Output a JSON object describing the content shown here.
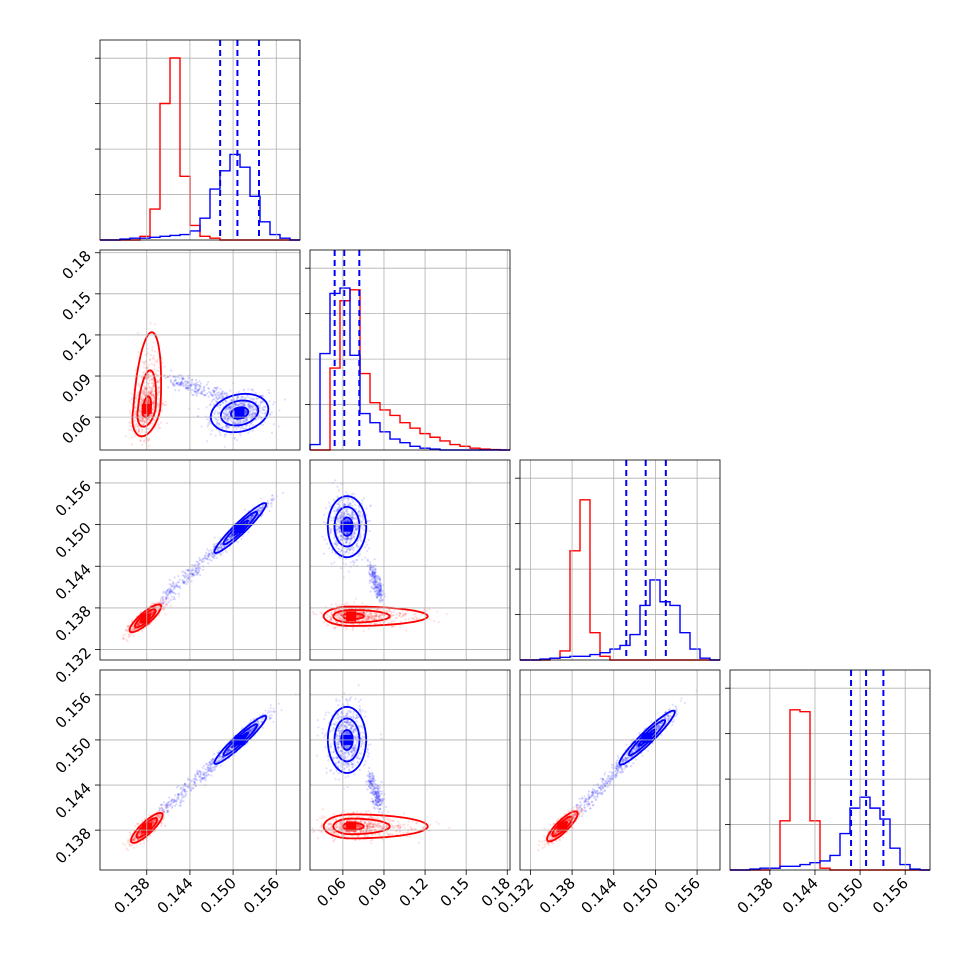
{
  "colors": {
    "red": "#ff0000",
    "blue": "#0000ff",
    "grid": "#b0b0b0",
    "axis": "#000000"
  },
  "chart_data": {
    "type": "corner",
    "grid": true,
    "series": [],
    "marginals": [
      {
        "range": [
          0.1315,
          0.1593
        ],
        "red_hist": [
          0,
          0,
          0,
          0,
          0.02,
          0.17,
          0.75,
          1.0,
          0.35,
          0.08,
          0.02,
          0.01,
          0,
          0,
          0,
          0,
          0,
          0,
          0,
          0
        ],
        "blue_hist": [
          0,
          0,
          0.005,
          0.01,
          0.01,
          0.015,
          0.02,
          0.025,
          0.03,
          0.05,
          0.12,
          0.28,
          0.38,
          0.47,
          0.4,
          0.24,
          0.1,
          0.03,
          0.01,
          0
        ],
        "blue_lines": [
          0.1482,
          0.1506,
          0.1536
        ],
        "ylim": [
          0,
          1.0
        ]
      },
      {
        "range": [
          0.036,
          0.182
        ],
        "red_hist": [
          0,
          0,
          0.45,
          0.82,
          0.88,
          0.42,
          0.26,
          0.22,
          0.19,
          0.15,
          0.12,
          0.09,
          0.07,
          0.05,
          0.03,
          0.02,
          0.01,
          0.005,
          0.002,
          0
        ],
        "blue_hist": [
          0.03,
          0.53,
          0.86,
          0.89,
          0.52,
          0.2,
          0.15,
          0.1,
          0.06,
          0.04,
          0.02,
          0.01,
          0.005,
          0,
          0,
          0,
          0,
          0,
          0,
          0
        ],
        "blue_lines": [
          0.054,
          0.061,
          0.072
        ],
        "ylim": [
          0,
          1.0
        ]
      },
      {
        "range": [
          0.1305,
          0.1593
        ],
        "red_hist": [
          0,
          0,
          0,
          0.01,
          0.05,
          0.6,
          0.88,
          0.15,
          0.02,
          0,
          0,
          0,
          0,
          0,
          0,
          0,
          0,
          0,
          0,
          0
        ],
        "blue_hist": [
          0,
          0,
          0.005,
          0.01,
          0.015,
          0.02,
          0.02,
          0.03,
          0.04,
          0.06,
          0.08,
          0.14,
          0.3,
          0.44,
          0.32,
          0.3,
          0.15,
          0.06,
          0.01,
          0
        ],
        "blue_lines": [
          0.1458,
          0.1486,
          0.1515
        ],
        "ylim": [
          0,
          1.0
        ]
      },
      {
        "range": [
          0.1327,
          0.1593
        ],
        "red_hist": [
          0,
          0,
          0,
          0,
          0.01,
          0.27,
          0.88,
          0.87,
          0.27,
          0.01,
          0,
          0,
          0,
          0,
          0,
          0,
          0,
          0,
          0,
          0
        ],
        "blue_hist": [
          0,
          0,
          0.005,
          0.01,
          0.01,
          0.02,
          0.02,
          0.03,
          0.04,
          0.05,
          0.08,
          0.2,
          0.34,
          0.4,
          0.34,
          0.28,
          0.12,
          0.03,
          0.005,
          0
        ],
        "blue_lines": [
          0.1488,
          0.1508,
          0.1531
        ],
        "ylim": [
          0,
          1.0
        ]
      }
    ],
    "panels": [
      {
        "row": 1,
        "col": 0,
        "xrange": [
          0.1315,
          0.1593
        ],
        "yrange": [
          0.036,
          0.182
        ],
        "red": {
          "cx": 0.138,
          "cy": 0.066,
          "sx": 0.001,
          "sy": 0.01,
          "rho": 0.35,
          "skew": [
            0,
            0.03
          ]
        },
        "blue": {
          "cx": 0.1509,
          "cy": 0.063,
          "sx": 0.002,
          "sy": 0.007,
          "rho": 0.2,
          "skew": [
            0,
            0
          ]
        },
        "bridge": {
          "from": [
            0.141,
            0.088
          ],
          "to": [
            0.149,
            0.074
          ]
        }
      },
      {
        "row": 2,
        "col": 0,
        "xrange": [
          0.1315,
          0.1593
        ],
        "yrange": [
          0.1305,
          0.1593
        ],
        "red": {
          "cx": 0.1378,
          "cy": 0.1365,
          "sx": 0.0011,
          "sy": 0.001,
          "rho": 0.85,
          "skew": [
            0,
            0
          ]
        },
        "blue": {
          "cx": 0.151,
          "cy": 0.1495,
          "sx": 0.0018,
          "sy": 0.0018,
          "rho": 0.95,
          "skew": [
            0,
            0
          ]
        },
        "bridge": {
          "from": [
            0.14,
            0.139
          ],
          "to": [
            0.148,
            0.1466
          ]
        }
      },
      {
        "row": 2,
        "col": 1,
        "xrange": [
          0.036,
          0.182
        ],
        "yrange": [
          0.1305,
          0.1593
        ],
        "red": {
          "cx": 0.066,
          "cy": 0.1368,
          "sx": 0.01,
          "sy": 0.0007,
          "rho": 0.0,
          "skew": [
            0.04,
            0
          ]
        },
        "blue": {
          "cx": 0.063,
          "cy": 0.1497,
          "sx": 0.007,
          "sy": 0.0022,
          "rho": 0.0,
          "skew": [
            0,
            0
          ]
        },
        "bridge": {
          "from": [
            0.08,
            0.144
          ],
          "to": [
            0.088,
            0.1395
          ]
        }
      },
      {
        "row": 3,
        "col": 0,
        "xrange": [
          0.1315,
          0.1593
        ],
        "yrange": [
          0.1327,
          0.1593
        ],
        "red": {
          "cx": 0.138,
          "cy": 0.1383,
          "sx": 0.0011,
          "sy": 0.001,
          "rho": 0.85,
          "skew": [
            0,
            0
          ]
        },
        "blue": {
          "cx": 0.151,
          "cy": 0.15,
          "sx": 0.0018,
          "sy": 0.0016,
          "rho": 0.95,
          "skew": [
            0,
            0
          ]
        },
        "bridge": {
          "from": [
            0.14,
            0.1405
          ],
          "to": [
            0.148,
            0.1473
          ]
        }
      },
      {
        "row": 3,
        "col": 1,
        "xrange": [
          0.036,
          0.182
        ],
        "yrange": [
          0.1327,
          0.1593
        ],
        "red": {
          "cx": 0.066,
          "cy": 0.1385,
          "sx": 0.01,
          "sy": 0.0008,
          "rho": 0.0,
          "skew": [
            0.04,
            0
          ]
        },
        "blue": {
          "cx": 0.063,
          "cy": 0.15,
          "sx": 0.007,
          "sy": 0.0022,
          "rho": 0.0,
          "skew": [
            0,
            0
          ]
        },
        "bridge": {
          "from": [
            0.08,
            0.145
          ],
          "to": [
            0.088,
            0.141
          ]
        }
      },
      {
        "row": 3,
        "col": 2,
        "xrange": [
          0.1305,
          0.1593
        ],
        "yrange": [
          0.1327,
          0.1593
        ],
        "red": {
          "cx": 0.1366,
          "cy": 0.1385,
          "sx": 0.0011,
          "sy": 0.001,
          "rho": 0.85,
          "skew": [
            0,
            0
          ]
        },
        "blue": {
          "cx": 0.1488,
          "cy": 0.1503,
          "sx": 0.002,
          "sy": 0.0018,
          "rho": 0.95,
          "skew": [
            0,
            0
          ]
        },
        "bridge": {
          "from": [
            0.139,
            0.1405
          ],
          "to": [
            0.146,
            0.1475
          ]
        }
      }
    ],
    "x_tick_labels": [
      [
        "0.138",
        "0.144",
        "0.150",
        "0.156"
      ],
      [
        "0.06",
        "0.09",
        "0.12",
        "0.15",
        "0.18"
      ],
      [
        "0.132",
        "0.138",
        "0.144",
        "0.150",
        "0.156"
      ],
      [
        "0.138",
        "0.144",
        "0.150",
        "0.156"
      ]
    ],
    "x_tick_values": [
      [
        0.138,
        0.144,
        0.15,
        0.156
      ],
      [
        0.06,
        0.09,
        0.12,
        0.15,
        0.18
      ],
      [
        0.132,
        0.138,
        0.144,
        0.15,
        0.156
      ],
      [
        0.138,
        0.144,
        0.15,
        0.156
      ]
    ],
    "y_tick_labels": [
      [],
      [
        "0.18",
        "0.15",
        "0.12",
        "0.09",
        "0.06"
      ],
      [
        "0.156",
        "0.150",
        "0.144",
        "0.138",
        "0.132"
      ],
      [
        "0.156",
        "0.150",
        "0.144",
        "0.138"
      ]
    ],
    "y_tick_values": [
      [],
      [
        0.18,
        0.15,
        0.12,
        0.09,
        0.06
      ],
      [
        0.156,
        0.15,
        0.144,
        0.138,
        0.132
      ],
      [
        0.156,
        0.15,
        0.144,
        0.138
      ]
    ]
  }
}
